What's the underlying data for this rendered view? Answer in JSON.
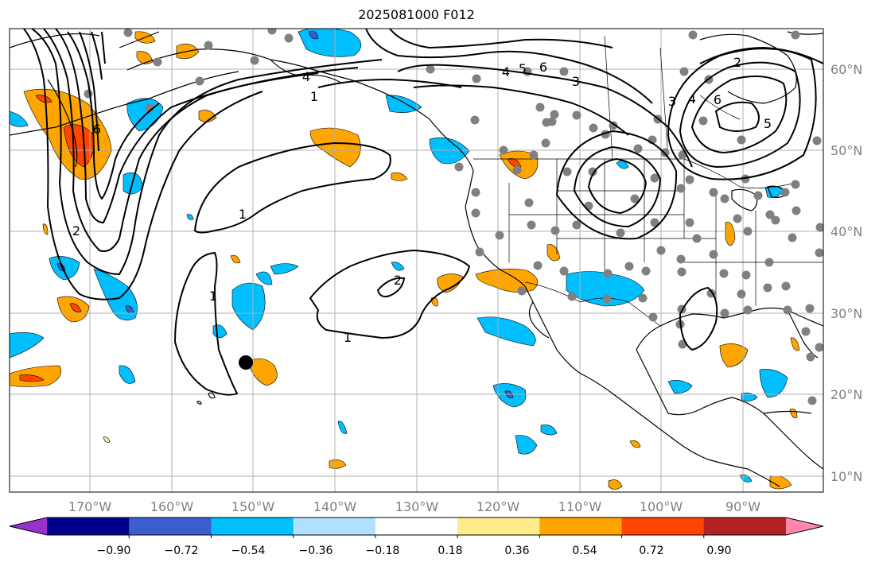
{
  "title": "2025081000 F012",
  "lon_ticks": [
    "170°W",
    "160°W",
    "150°W",
    "140°W",
    "130°W",
    "120°W",
    "110°W",
    "100°W",
    "90°W"
  ],
  "lat_ticks": [
    "60°N",
    "50°N",
    "40°N",
    "30°N",
    "20°N",
    "10°N"
  ],
  "colorbar": {
    "tick_labels": [
      "−0.90",
      "−0.72",
      "−0.54",
      "−0.36",
      "−0.18",
      "0.18",
      "0.36",
      "0.54",
      "0.72",
      "0.90"
    ],
    "colors": [
      "#9932cc",
      "#00008b",
      "#3a5fcd",
      "#00bfff",
      "#b0e2ff",
      "#ffffff",
      "#ffec8b",
      "#ffa500",
      "#ff4500",
      "#b22222",
      "#ff88aa"
    ]
  },
  "contour_labels": [
    "1",
    "1",
    "1",
    "1",
    "2",
    "2",
    "2",
    "3",
    "3",
    "4",
    "4",
    "4",
    "5",
    "5",
    "6",
    "6",
    "6"
  ],
  "colors": {
    "land_line": "#000000",
    "grid": "#b0b0b0",
    "station_dot": "#808080",
    "marker": "#000000"
  }
}
